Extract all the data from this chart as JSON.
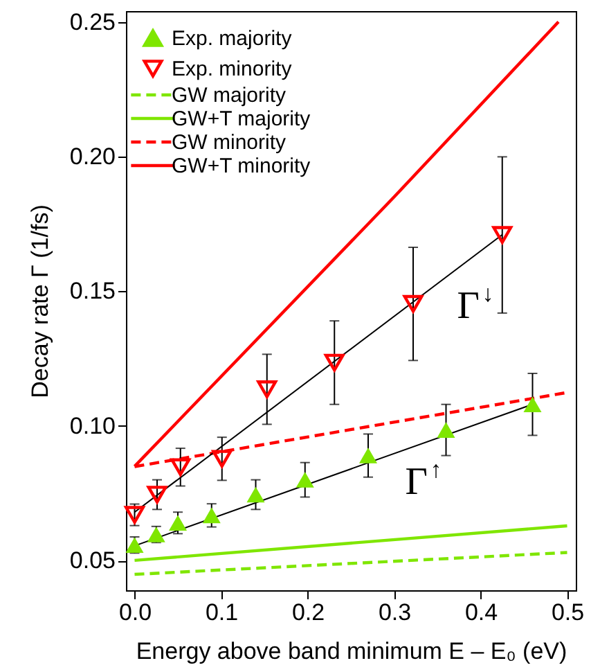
{
  "chart_data": {
    "type": "scatter",
    "xlabel": "Energy above band minimum E – E₀ (eV)",
    "ylabel": "Decay rate Γ (1/fs)",
    "xlim": [
      -0.01,
      0.51
    ],
    "ylim": [
      0.039,
      0.254
    ],
    "xticks": [
      {
        "value": 0,
        "label": "0.0"
      },
      0.1,
      0.2,
      0.3,
      0.4,
      0.5
    ],
    "yticks": [
      0.05,
      {
        "value": 0.1,
        "label": "0.10"
      },
      0.15,
      {
        "value": 0.2,
        "label": "0.20"
      },
      0.25
    ],
    "grid": false,
    "legend": "top left",
    "annotations": [
      {
        "text": "Γ$^{↓}$",
        "x": 0.36,
        "y": 0.155
      },
      {
        "text": "Γ$^{↑}$",
        "x": 0.3,
        "y": 0.0897
      }
    ],
    "series": [
      {
        "name": "Exp. majority",
        "type": "scatter",
        "marker": "triangle",
        "color": "#7fe600",
        "x": [
          0.0,
          0.025,
          0.05,
          0.089,
          0.14,
          0.197,
          0.27,
          0.36,
          0.46
        ],
        "values": [
          0.0558,
          0.0597,
          0.064,
          0.0668,
          0.0745,
          0.08,
          0.089,
          0.0985,
          0.108
        ],
        "errors": [
          0.003,
          0.003,
          0.004,
          0.0043,
          0.0055,
          0.0064,
          0.008,
          0.0095,
          0.0115
        ]
      },
      {
        "name": "Exp. minority",
        "type": "scatter",
        "marker": "triangle-down",
        "color": "#ff0000",
        "x": [
          0.0,
          0.026,
          0.053,
          0.101,
          0.153,
          0.231,
          0.322,
          0.425
        ],
        "values": [
          0.067,
          0.0745,
          0.0847,
          0.0878,
          0.1136,
          0.1235,
          0.1453,
          0.1709
        ],
        "errors": [
          0.004,
          0.0055,
          0.007,
          0.008,
          0.013,
          0.0155,
          0.021,
          0.029
        ]
      },
      {
        "name": "GW majority",
        "type": "line",
        "line_style": "dashed",
        "color": "#7fe600",
        "x": [
          0.0,
          0.5
        ],
        "values": [
          0.0449,
          0.053
        ]
      },
      {
        "name": "GW+T majority",
        "type": "line",
        "line_style": "solid",
        "color": "#7fe600",
        "x": [
          0.0,
          0.5
        ],
        "values": [
          0.0501,
          0.0629
        ]
      },
      {
        "name": "GW minority",
        "type": "line",
        "line_style": "dashed",
        "color": "#ff0000",
        "x": [
          0.0,
          0.5
        ],
        "values": [
          0.0849,
          0.1124
        ]
      },
      {
        "name": "GW+T minority",
        "type": "line",
        "line_style": "solid",
        "color": "#ff0000",
        "x": [
          0.0,
          0.3,
          0.49
        ],
        "values": [
          0.085,
          0.185,
          0.25
        ]
      },
      {
        "type": "line",
        "line_style": "solid",
        "color": "#000000",
        "x": [
          0.0,
          0.46
        ],
        "values": [
          0.0555,
          0.108
        ]
      },
      {
        "type": "line",
        "line_style": "solid",
        "color": "#000000",
        "x": [
          0.0,
          0.425
        ],
        "values": [
          0.068,
          0.171
        ]
      }
    ]
  }
}
